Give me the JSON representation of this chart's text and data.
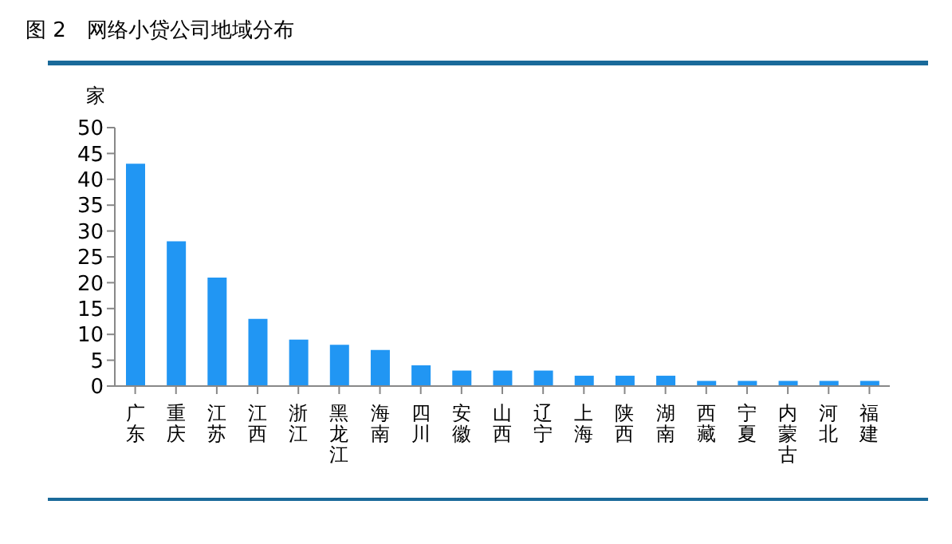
{
  "chart_data": {
    "type": "bar",
    "title": "图 2　网络小贷公司地域分布",
    "ylabel": "家",
    "categories": [
      "广东",
      "重庆",
      "江苏",
      "江西",
      "浙江",
      "黑龙江",
      "海南",
      "四川",
      "安徽",
      "山西",
      "辽宁",
      "上海",
      "陕西",
      "湖南",
      "西藏",
      "宁夏",
      "内蒙古",
      "河北",
      "福建"
    ],
    "values": [
      43,
      28,
      21,
      13,
      9,
      8,
      7,
      4,
      3,
      3,
      3,
      2,
      2,
      2,
      1,
      1,
      1,
      1,
      1
    ],
    "color": "#2196f3",
    "ylim": [
      0,
      50
    ],
    "yticks": [
      0,
      5,
      10,
      15,
      20,
      25,
      30,
      35,
      40,
      45,
      50
    ],
    "grid": false
  }
}
